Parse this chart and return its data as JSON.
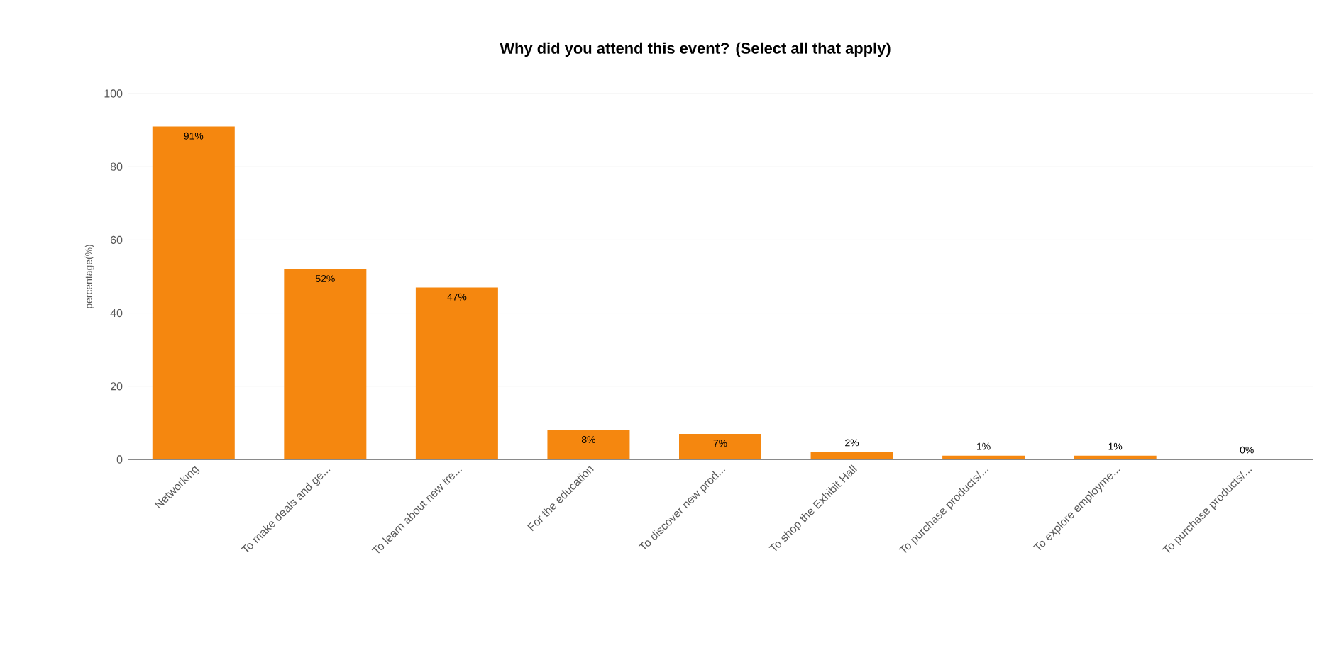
{
  "chart_data": {
    "type": "bar",
    "title": "Why did you attend this event? (Select all that apply)",
    "ylabel": "percentage(%)",
    "categories": [
      "Networking",
      "To make deals and ge...",
      "To learn about new tre...",
      "For the education",
      "To discover new prod...",
      "To shop the Exhibit Hall",
      "To purchase products/...",
      "To explore employme...",
      "To purchase products/..."
    ],
    "values": [
      91,
      52,
      47,
      8,
      7,
      2,
      1,
      1,
      0
    ],
    "value_labels": [
      "91%",
      "52%",
      "47%",
      "8%",
      "7%",
      "2%",
      "1%",
      "1%",
      "0%"
    ],
    "color": "#f5870f",
    "ylim": [
      0,
      100
    ],
    "yticks": [
      0,
      20,
      40,
      60,
      80,
      100
    ],
    "grid": "y"
  }
}
